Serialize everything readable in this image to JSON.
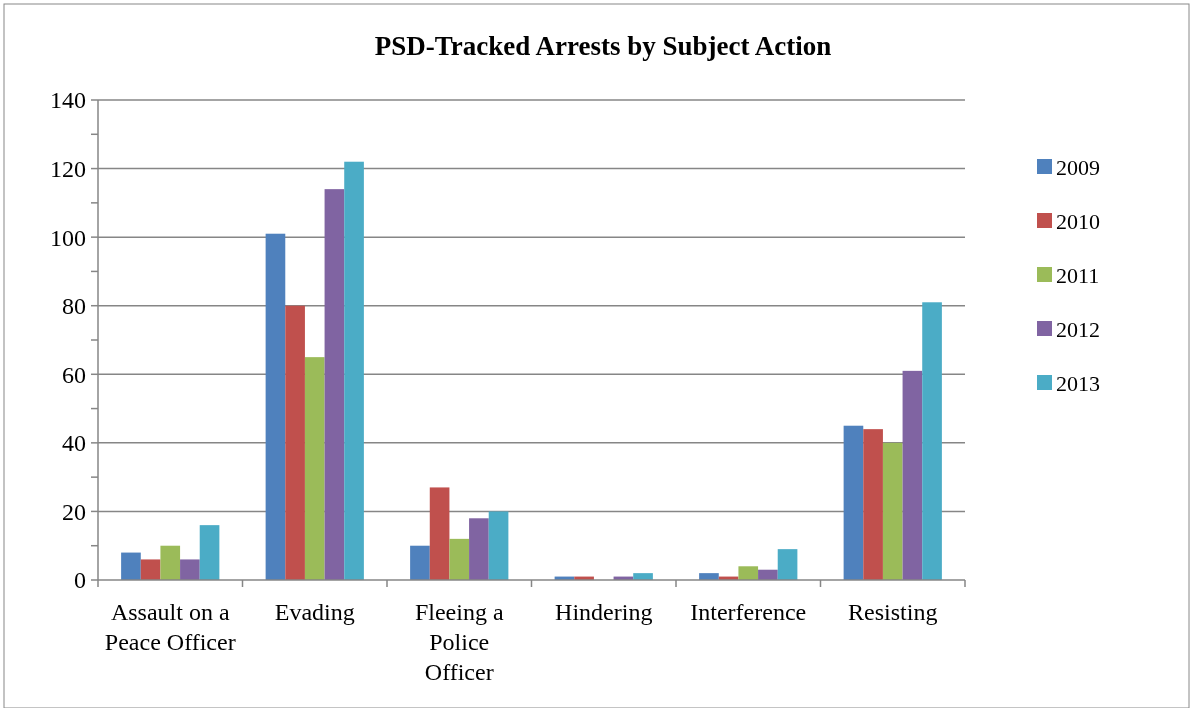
{
  "chart_data": {
    "type": "bar",
    "title": "PSD-Tracked Arrests by Subject Action",
    "categories": [
      "Assault on a Peace Officer",
      "Evading",
      "Fleeing a Police Officer",
      "Hindering",
      "Interference",
      "Resisting"
    ],
    "series": [
      {
        "name": "2009",
        "color": "#4f81bd",
        "values": [
          8,
          101,
          10,
          1,
          2,
          45
        ]
      },
      {
        "name": "2010",
        "color": "#c0504d",
        "values": [
          6,
          80,
          27,
          1,
          1,
          44
        ]
      },
      {
        "name": "2011",
        "color": "#9bbb59",
        "values": [
          10,
          65,
          12,
          0,
          4,
          40
        ]
      },
      {
        "name": "2012",
        "color": "#8064a2",
        "values": [
          6,
          114,
          18,
          1,
          3,
          61
        ]
      },
      {
        "name": "2013",
        "color": "#4bacc6",
        "values": [
          16,
          122,
          20,
          2,
          9,
          81
        ]
      }
    ],
    "ylim": [
      0,
      140
    ],
    "yticks": [
      0,
      {
        "value": 10,
        "label": null
      },
      20,
      {
        "value": 30,
        "label": null
      },
      40,
      {
        "value": 50,
        "label": null
      },
      60,
      {
        "value": 70,
        "label": null
      },
      80,
      {
        "value": 90,
        "label": null
      },
      100,
      {
        "value": 110,
        "label": null
      },
      120,
      {
        "value": 130,
        "label": null
      },
      140
    ],
    "grid": "y",
    "legend": "right"
  }
}
